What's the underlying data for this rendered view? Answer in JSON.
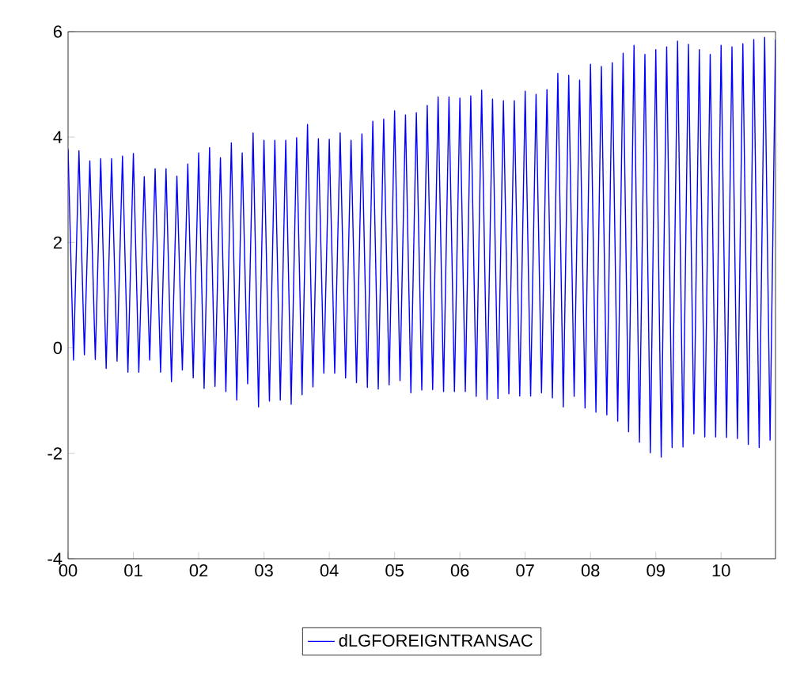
{
  "chart_data": {
    "type": "line",
    "x": [
      "2000-01",
      "2000-02",
      "2000-03",
      "2000-04",
      "2000-05",
      "2000-06",
      "2000-07",
      "2000-08",
      "2000-09",
      "2000-10",
      "2000-11",
      "2000-12",
      "2001-01",
      "2001-02",
      "2001-03",
      "2001-04",
      "2001-05",
      "2001-06",
      "2001-07",
      "2001-08",
      "2001-09",
      "2001-10",
      "2001-11",
      "2001-12",
      "2002-01",
      "2002-02",
      "2002-03",
      "2002-04",
      "2002-05",
      "2002-06",
      "2002-07",
      "2002-08",
      "2002-09",
      "2002-10",
      "2002-11",
      "2002-12",
      "2003-01",
      "2003-02",
      "2003-03",
      "2003-04",
      "2003-05",
      "2003-06",
      "2003-07",
      "2003-08",
      "2003-09",
      "2003-10",
      "2003-11",
      "2003-12",
      "2004-01",
      "2004-02",
      "2004-03",
      "2004-04",
      "2004-05",
      "2004-06",
      "2004-07",
      "2004-08",
      "2004-09",
      "2004-10",
      "2004-11",
      "2004-12",
      "2005-01",
      "2005-02",
      "2005-03",
      "2005-04",
      "2005-05",
      "2005-06",
      "2005-07",
      "2005-08",
      "2005-09",
      "2005-10",
      "2005-11",
      "2005-12",
      "2006-01",
      "2006-02",
      "2006-03",
      "2006-04",
      "2006-05",
      "2006-06",
      "2006-07",
      "2006-08",
      "2006-09",
      "2006-10",
      "2006-11",
      "2006-12",
      "2007-01",
      "2007-02",
      "2007-03",
      "2007-04",
      "2007-05",
      "2007-06",
      "2007-07",
      "2007-08",
      "2007-09",
      "2007-10",
      "2007-11",
      "2007-12",
      "2008-01",
      "2008-02",
      "2008-03",
      "2008-04",
      "2008-05",
      "2008-06",
      "2008-07",
      "2008-08",
      "2008-09",
      "2008-10",
      "2008-11",
      "2008-12",
      "2009-01",
      "2009-02",
      "2009-03",
      "2009-04",
      "2009-05",
      "2009-06",
      "2009-07",
      "2009-08",
      "2009-09",
      "2009-10",
      "2009-11",
      "2009-12",
      "2010-01",
      "2010-02",
      "2010-03",
      "2010-04",
      "2010-05",
      "2010-06",
      "2010-07",
      "2010-08",
      "2010-09",
      "2010-10",
      "2010-11"
    ],
    "series": [
      {
        "name": "dLGFOREIGNTRANSAC",
        "color": "#0000ff",
        "values": [
          3.77,
          -0.23,
          3.74,
          -0.13,
          3.55,
          -0.22,
          3.59,
          -0.39,
          3.59,
          -0.25,
          3.64,
          -0.46,
          3.69,
          -0.46,
          3.25,
          -0.23,
          3.4,
          -0.46,
          3.4,
          -0.64,
          3.26,
          -0.42,
          3.49,
          -0.57,
          3.7,
          -0.77,
          3.8,
          -0.73,
          3.61,
          -0.83,
          3.89,
          -0.99,
          3.7,
          -0.68,
          4.08,
          -1.12,
          3.94,
          -1.01,
          3.94,
          -0.99,
          3.94,
          -1.07,
          3.99,
          -0.89,
          4.24,
          -0.74,
          3.97,
          -0.48,
          3.96,
          -0.48,
          4.08,
          -0.57,
          3.94,
          -0.66,
          4.06,
          -0.75,
          4.3,
          -0.78,
          4.34,
          -0.7,
          4.5,
          -0.62,
          4.42,
          -0.85,
          4.46,
          -0.8,
          4.6,
          -0.79,
          4.76,
          -0.83,
          4.76,
          -0.83,
          4.74,
          -0.83,
          4.78,
          -0.92,
          4.89,
          -0.98,
          4.72,
          -0.96,
          4.69,
          -0.87,
          4.69,
          -0.91,
          4.87,
          -0.91,
          4.81,
          -0.85,
          4.9,
          -0.95,
          5.21,
          -1.12,
          5.17,
          -0.92,
          5.08,
          -1.14,
          5.38,
          -1.22,
          5.34,
          -1.27,
          5.41,
          -1.39,
          5.59,
          -1.59,
          5.74,
          -1.79,
          5.57,
          -1.99,
          5.66,
          -2.07,
          5.71,
          -1.89,
          5.82,
          -1.88,
          5.76,
          -1.63,
          5.66,
          -1.69,
          5.57,
          -1.69,
          5.74,
          -1.7,
          5.71,
          -1.72,
          5.77,
          -1.83,
          5.85,
          -1.89,
          5.89,
          -1.75,
          5.85
        ]
      }
    ],
    "xlim": [
      "2000-01",
      "2010-11"
    ],
    "xticks": [
      {
        "value": "2000",
        "label": "00"
      },
      {
        "value": "2001",
        "label": "01"
      },
      {
        "value": "2002",
        "label": "02"
      },
      {
        "value": "2003",
        "label": "03"
      },
      {
        "value": "2004",
        "label": "04"
      },
      {
        "value": "2005",
        "label": "05"
      },
      {
        "value": "2006",
        "label": "06"
      },
      {
        "value": "2007",
        "label": "07"
      },
      {
        "value": "2008",
        "label": "08"
      },
      {
        "value": "2009",
        "label": "09"
      },
      {
        "value": "2010",
        "label": "10"
      }
    ],
    "ylim": [
      -4,
      6
    ],
    "yticks": [
      -4,
      -2,
      0,
      2,
      4,
      6
    ],
    "legend": "bottom",
    "grid": false,
    "marker": "none",
    "line_style": "solid"
  }
}
